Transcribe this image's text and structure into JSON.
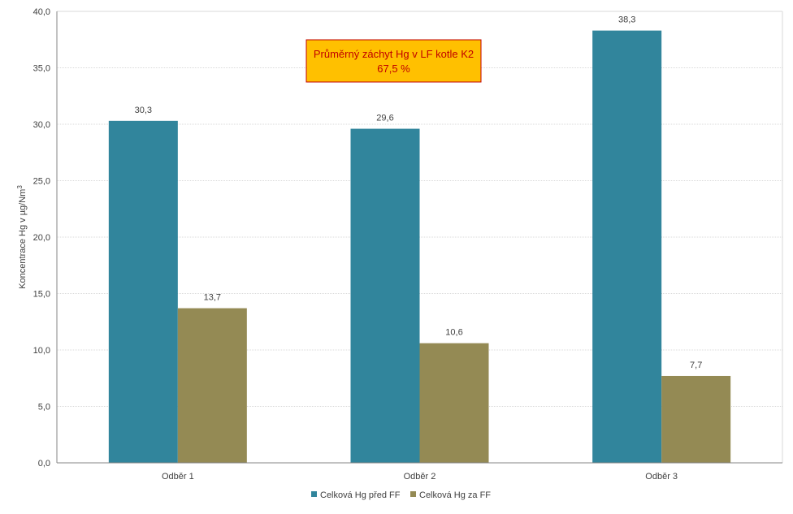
{
  "chart_data": {
    "type": "bar",
    "categories": [
      "Odběr 1",
      "Odběr 2",
      "Odběr 3"
    ],
    "series": [
      {
        "name": "Celková Hg před FF",
        "values": [
          30.3,
          29.6,
          38.3
        ],
        "color": "#31859c",
        "labels": [
          "30,3",
          "29,6",
          "38,3"
        ]
      },
      {
        "name": "Celková Hg za FF",
        "values": [
          13.7,
          10.6,
          7.7
        ],
        "color": "#948a54",
        "labels": [
          "13,7",
          "10,6",
          "7,7"
        ]
      }
    ],
    "ylabel_main": "Koncentrace Hg v µg/Nm",
    "ylabel_sup": "3",
    "ylim": [
      0,
      40
    ],
    "yticks": [
      0,
      5,
      10,
      15,
      20,
      25,
      30,
      35,
      40
    ],
    "ytick_labels": [
      "0,0",
      "5,0",
      "10,0",
      "15,0",
      "20,0",
      "25,0",
      "30,0",
      "35,0",
      "40,0"
    ],
    "grid": true,
    "legend_position": "bottom",
    "annotation": {
      "line1": "Průměrný záchyt Hg v LF kotle K2",
      "line2": "67,5 %",
      "background": "#ffc000",
      "border": "#c00000",
      "text_color": "#c00000"
    }
  }
}
